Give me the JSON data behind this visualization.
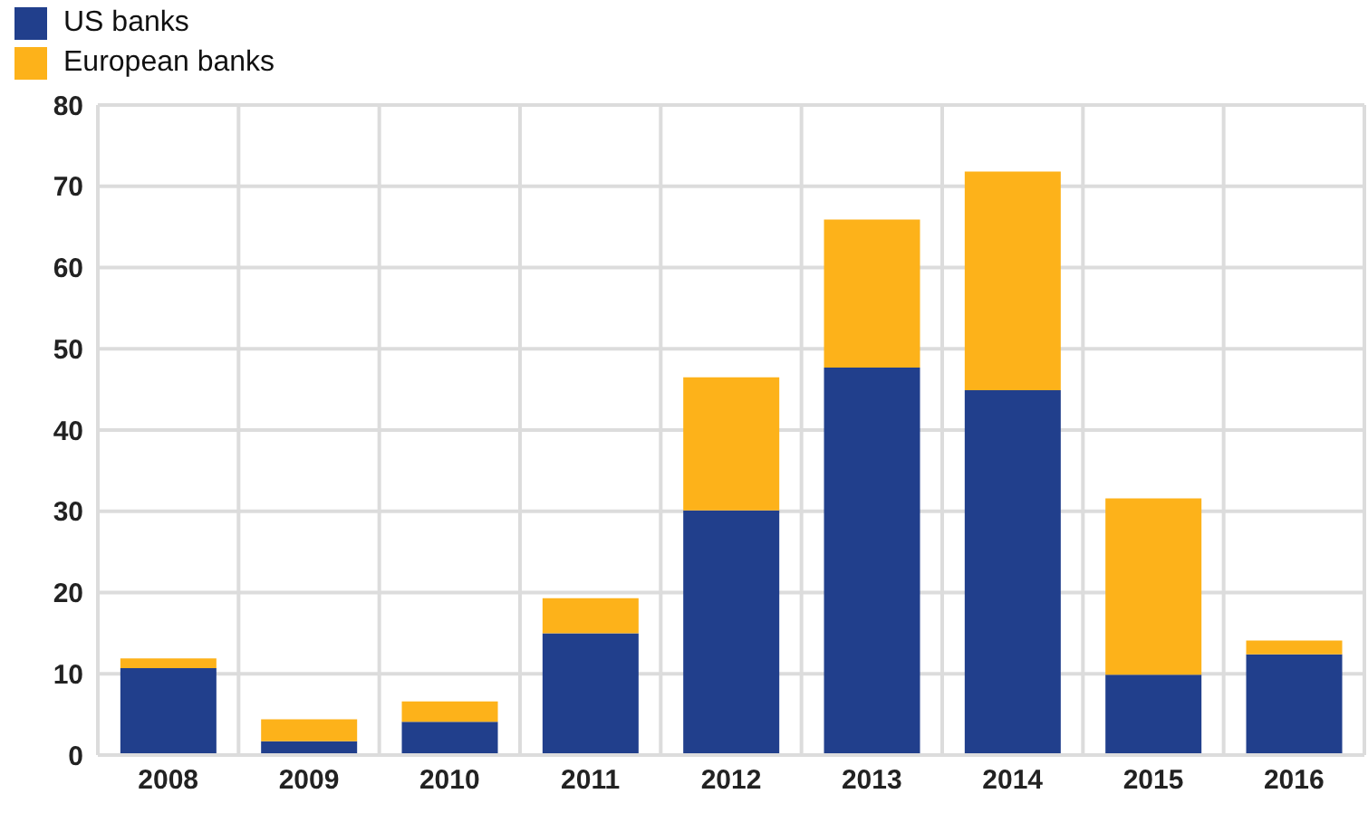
{
  "chart_data": {
    "type": "bar",
    "stacked": true,
    "categories": [
      "2008",
      "2009",
      "2010",
      "2011",
      "2012",
      "2013",
      "2014",
      "2015",
      "2016"
    ],
    "series": [
      {
        "name": "US banks",
        "color": "#213f8c",
        "values": [
          10.7,
          1.7,
          4.1,
          15,
          30.1,
          47.7,
          44.9,
          9.9,
          12.4
        ]
      },
      {
        "name": "European banks",
        "color": "#fdb21a",
        "values": [
          1.2,
          2.7,
          2.5,
          4.3,
          16.4,
          18.2,
          26.9,
          21.7,
          1.7
        ]
      }
    ],
    "ylim": [
      0,
      80
    ],
    "yticks": [
      0,
      10,
      20,
      30,
      40,
      50,
      60,
      70,
      80
    ],
    "grid": true,
    "legend": "top left"
  }
}
